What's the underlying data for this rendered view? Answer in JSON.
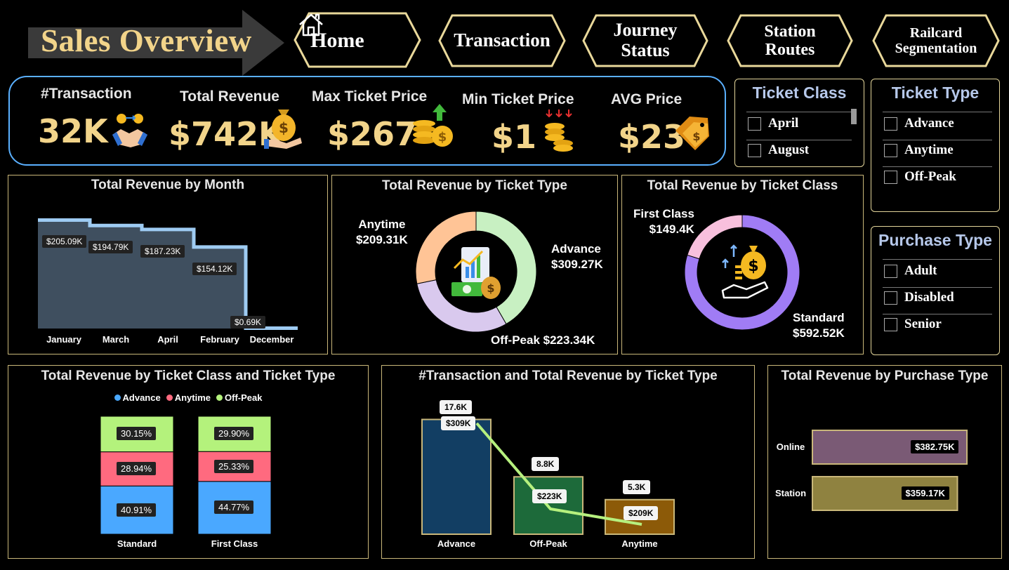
{
  "header": {
    "title": "Sales Overview",
    "nav": [
      {
        "label": "Home"
      },
      {
        "label": "Transaction"
      },
      {
        "label": "Journey\nStatus"
      },
      {
        "label": "Station\nRoutes"
      },
      {
        "label": "Railcard\nSegmentation"
      }
    ]
  },
  "kpis": [
    {
      "label": "#Transaction",
      "value": "32K",
      "icon": "handshake-icon"
    },
    {
      "label": "Total Revenue",
      "value": "$742K",
      "icon": "money-bag-hand-icon"
    },
    {
      "label": "Max Ticket Price",
      "value": "$267",
      "icon": "coins-up-icon"
    },
    {
      "label": "Min Ticket Price",
      "value": "$1",
      "icon": "coins-down-icon"
    },
    {
      "label": "AVG Price",
      "value": "$23",
      "icon": "price-tag-icon"
    }
  ],
  "slicers": {
    "ticket_class": {
      "title": "Ticket Class",
      "items": [
        "April",
        "August"
      ]
    },
    "ticket_type": {
      "title": "Ticket Type",
      "items": [
        "Advance",
        "Anytime",
        "Off-Peak"
      ]
    },
    "purchase_type": {
      "title": "Purchase Type",
      "items": [
        "Adult",
        "Disabled",
        "Senior"
      ]
    }
  },
  "colors": {
    "gold": "#f2d48a",
    "panel_border": "#c9b77a",
    "kpi_border": "#5ab0ff",
    "slicer_title": "#b6c8ea"
  },
  "chart_data": [
    {
      "type": "area",
      "title": "Total Revenue by Month",
      "categories": [
        "January",
        "March",
        "April",
        "February",
        "December"
      ],
      "values": [
        205.09,
        194.79,
        187.23,
        154.12,
        0.69
      ],
      "labels": [
        "$205.09K",
        "$194.79K",
        "$187.23K",
        "$154.12K",
        "$0.69K"
      ],
      "ylim": [
        0,
        215
      ]
    },
    {
      "type": "pie",
      "title": "Total Revenue by Ticket Type",
      "categories": [
        "Advance",
        "Off-Peak",
        "Anytime"
      ],
      "values": [
        309.27,
        223.34,
        209.31
      ],
      "labels": [
        "$309.27K",
        "$223.34K",
        "$209.31K"
      ],
      "colors": [
        "#c8f0c2",
        "#d9c9ee",
        "#ffc496"
      ]
    },
    {
      "type": "pie",
      "title": "Total Revenue by Ticket Class",
      "categories": [
        "Standard",
        "First Class"
      ],
      "values": [
        592.52,
        149.4
      ],
      "labels": [
        "$592.52K",
        "$149.4K"
      ],
      "colors": [
        "#a07cf5",
        "#f8c0dd"
      ]
    },
    {
      "type": "bar",
      "stacked": "100%",
      "title": "Total Revenue by Ticket Class and Ticket Type",
      "categories": [
        "Standard",
        "First Class"
      ],
      "legend": "top",
      "series": [
        {
          "name": "Advance",
          "values": [
            40.91,
            44.77
          ],
          "labels": [
            "40.91%",
            "44.77%"
          ],
          "color": "#4aa8ff"
        },
        {
          "name": "Anytime",
          "values": [
            28.94,
            25.33
          ],
          "labels": [
            "28.94%",
            "25.33%"
          ],
          "color": "#ff6a7f"
        },
        {
          "name": "Off-Peak",
          "values": [
            30.15,
            29.9
          ],
          "labels": [
            "30.15%",
            "29.90%"
          ],
          "color": "#b4f27c"
        }
      ]
    },
    {
      "type": "bar",
      "title": "#Transaction and Total Revenue by Ticket Type",
      "categories": [
        "Advance",
        "Off-Peak",
        "Anytime"
      ],
      "series": [
        {
          "name": "#Transaction",
          "kind": "bar",
          "values": [
            17.6,
            8.8,
            5.3
          ],
          "labels": [
            "17.6K",
            "8.8K",
            "5.3K"
          ],
          "colors": [
            "#123e63",
            "#1d6a3a",
            "#8c5a08"
          ]
        },
        {
          "name": "Total Revenue",
          "kind": "line",
          "values": [
            309,
            223,
            209
          ],
          "labels": [
            "$309K",
            "$223K",
            "$209K"
          ],
          "color": "#b6f07e"
        }
      ],
      "ylim": [
        0,
        20
      ]
    },
    {
      "type": "bar",
      "orientation": "horizontal",
      "title": "Total Revenue by Purchase Type",
      "categories": [
        "Online",
        "Station"
      ],
      "values": [
        382.75,
        359.17
      ],
      "labels": [
        "$382.75K",
        "$359.17K"
      ],
      "colors": [
        "#7a5a75",
        "#8f8240"
      ],
      "xlim": [
        0,
        400
      ]
    }
  ]
}
